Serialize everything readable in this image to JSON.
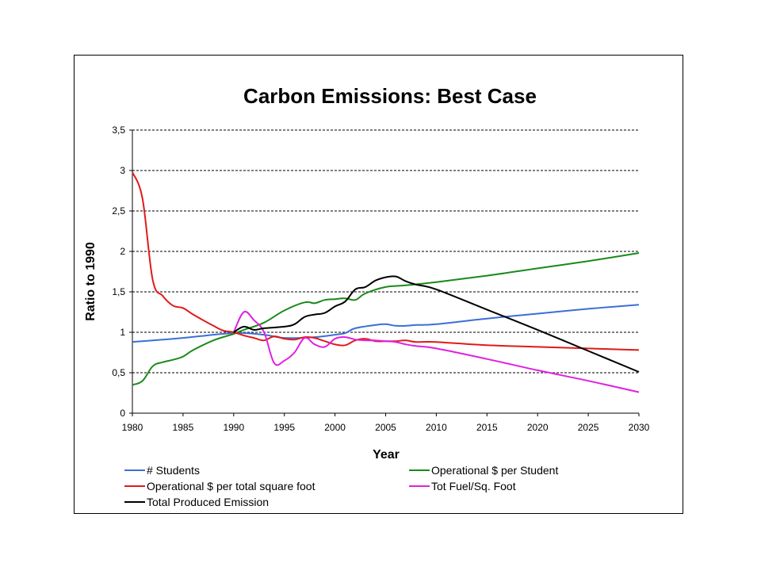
{
  "chart_data": {
    "type": "line",
    "title": "Carbon Emissions: Best Case",
    "xlabel": "Year",
    "ylabel": "Ratio to 1990",
    "xlim": [
      1980,
      2030
    ],
    "ylim": [
      0,
      3.5
    ],
    "xticks": [
      1980,
      1985,
      1990,
      1995,
      2000,
      2005,
      2010,
      2015,
      2020,
      2025,
      2030
    ],
    "yticks": [
      {
        "value": 0,
        "label": "0"
      },
      {
        "value": 0.5,
        "label": "0,5"
      },
      {
        "value": 1,
        "label": "1"
      },
      {
        "value": 1.5,
        "label": "1,5"
      },
      {
        "value": 2,
        "label": "2"
      },
      {
        "value": 2.5,
        "label": "2,5"
      },
      {
        "value": 3,
        "label": "3"
      },
      {
        "value": 3.5,
        "label": "3,5"
      }
    ],
    "grid": "horizontal-dashed",
    "legend_position": "bottom",
    "series": [
      {
        "name": "# Students",
        "color": "#3a6fd8",
        "points": [
          [
            1980,
            0.88
          ],
          [
            1985,
            0.93
          ],
          [
            1990,
            0.99
          ],
          [
            1993,
            0.97
          ],
          [
            1995,
            0.93
          ],
          [
            1998,
            0.94
          ],
          [
            2000,
            0.97
          ],
          [
            2001,
            0.99
          ],
          [
            2002,
            1.05
          ],
          [
            2004,
            1.09
          ],
          [
            2005,
            1.1
          ],
          [
            2006,
            1.08
          ],
          [
            2007,
            1.08
          ],
          [
            2008,
            1.09
          ],
          [
            2010,
            1.1
          ],
          [
            2015,
            1.17
          ],
          [
            2020,
            1.23
          ],
          [
            2025,
            1.29
          ],
          [
            2030,
            1.34
          ]
        ]
      },
      {
        "name": "Operational $ per Student",
        "color": "#1a8a1a",
        "points": [
          [
            1980,
            0.35
          ],
          [
            1981,
            0.4
          ],
          [
            1982,
            0.58
          ],
          [
            1983,
            0.63
          ],
          [
            1984,
            0.66
          ],
          [
            1985,
            0.7
          ],
          [
            1986,
            0.78
          ],
          [
            1988,
            0.9
          ],
          [
            1990,
            0.98
          ],
          [
            1991,
            1.03
          ],
          [
            1993,
            1.12
          ],
          [
            1995,
            1.27
          ],
          [
            1997,
            1.37
          ],
          [
            1998,
            1.36
          ],
          [
            1999,
            1.4
          ],
          [
            2000,
            1.41
          ],
          [
            2001,
            1.42
          ],
          [
            2002,
            1.4
          ],
          [
            2003,
            1.48
          ],
          [
            2005,
            1.56
          ],
          [
            2007,
            1.58
          ],
          [
            2010,
            1.62
          ],
          [
            2015,
            1.7
          ],
          [
            2020,
            1.79
          ],
          [
            2025,
            1.88
          ],
          [
            2030,
            1.98
          ]
        ]
      },
      {
        "name": "Operational $ per total square foot",
        "color": "#e01a1a",
        "points": [
          [
            1980,
            2.98
          ],
          [
            1981,
            2.65
          ],
          [
            1982,
            1.65
          ],
          [
            1983,
            1.45
          ],
          [
            1984,
            1.33
          ],
          [
            1985,
            1.3
          ],
          [
            1986,
            1.22
          ],
          [
            1988,
            1.08
          ],
          [
            1989,
            1.02
          ],
          [
            1990,
            1.0
          ],
          [
            1991,
            0.96
          ],
          [
            1992,
            0.93
          ],
          [
            1993,
            0.9
          ],
          [
            1994,
            0.95
          ],
          [
            1995,
            0.92
          ],
          [
            1996,
            0.91
          ],
          [
            1997,
            0.94
          ],
          [
            1998,
            0.93
          ],
          [
            1999,
            0.89
          ],
          [
            2000,
            0.85
          ],
          [
            2001,
            0.84
          ],
          [
            2002,
            0.9
          ],
          [
            2003,
            0.92
          ],
          [
            2004,
            0.89
          ],
          [
            2005,
            0.89
          ],
          [
            2006,
            0.89
          ],
          [
            2007,
            0.9
          ],
          [
            2008,
            0.88
          ],
          [
            2010,
            0.88
          ],
          [
            2015,
            0.84
          ],
          [
            2020,
            0.82
          ],
          [
            2025,
            0.8
          ],
          [
            2030,
            0.78
          ]
        ]
      },
      {
        "name": "Tot Fuel/Sq. Foot",
        "color": "#e020e0",
        "points": [
          [
            1990,
            1.0
          ],
          [
            1991,
            1.25
          ],
          [
            1992,
            1.15
          ],
          [
            1993,
            1.0
          ],
          [
            1994,
            0.62
          ],
          [
            1995,
            0.65
          ],
          [
            1996,
            0.75
          ],
          [
            1997,
            0.93
          ],
          [
            1998,
            0.85
          ],
          [
            1999,
            0.82
          ],
          [
            2000,
            0.92
          ],
          [
            2001,
            0.94
          ],
          [
            2002,
            0.91
          ],
          [
            2003,
            0.9
          ],
          [
            2004,
            0.9
          ],
          [
            2005,
            0.89
          ],
          [
            2006,
            0.88
          ],
          [
            2007,
            0.85
          ],
          [
            2008,
            0.83
          ],
          [
            2010,
            0.8
          ],
          [
            2015,
            0.67
          ],
          [
            2020,
            0.53
          ],
          [
            2025,
            0.4
          ],
          [
            2030,
            0.26
          ]
        ]
      },
      {
        "name": "Total Produced Emission",
        "color": "#000000",
        "points": [
          [
            1990,
            1.0
          ],
          [
            1991,
            1.07
          ],
          [
            1992,
            1.03
          ],
          [
            1993,
            1.05
          ],
          [
            1995,
            1.07
          ],
          [
            1996,
            1.1
          ],
          [
            1997,
            1.19
          ],
          [
            1998,
            1.22
          ],
          [
            1999,
            1.24
          ],
          [
            2000,
            1.32
          ],
          [
            2001,
            1.38
          ],
          [
            2002,
            1.53
          ],
          [
            2003,
            1.56
          ],
          [
            2004,
            1.64
          ],
          [
            2005,
            1.68
          ],
          [
            2006,
            1.69
          ],
          [
            2007,
            1.63
          ],
          [
            2008,
            1.59
          ],
          [
            2010,
            1.53
          ],
          [
            2015,
            1.28
          ],
          [
            2020,
            1.03
          ],
          [
            2025,
            0.77
          ],
          [
            2030,
            0.51
          ]
        ]
      }
    ]
  }
}
